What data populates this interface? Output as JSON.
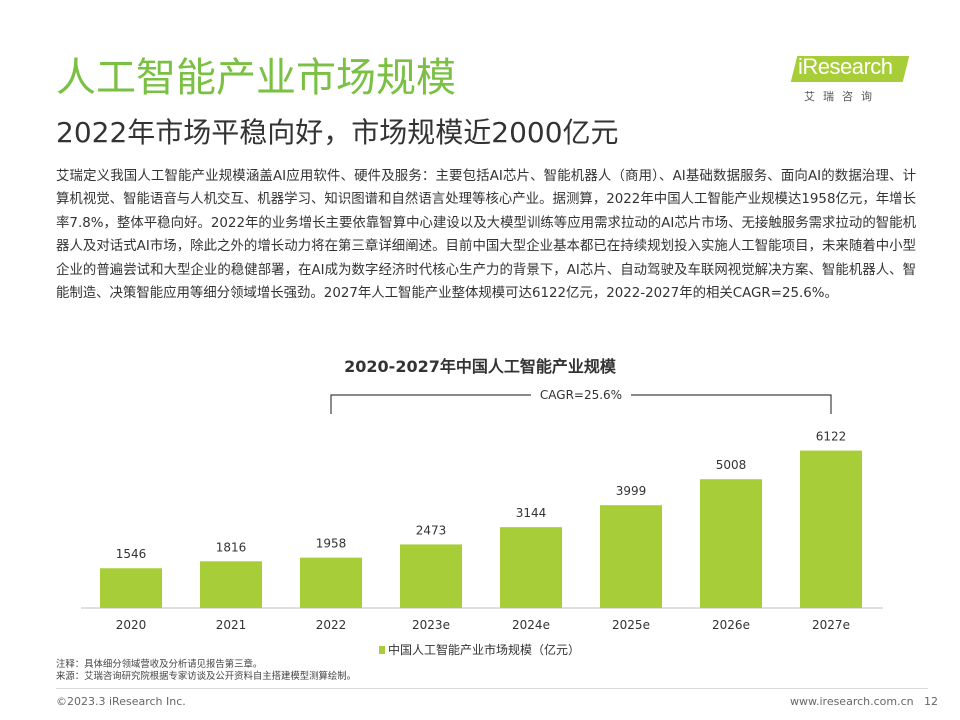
{
  "slide": {
    "title": "人工智能产业市场规模",
    "subtitle": "2022年市场平稳向好，市场规模近2000亿元",
    "paragraph": "艾瑞定义我国人工智能产业规模涵盖AI应用软件、硬件及服务：主要包括AI芯片、智能机器人（商用）、AI基础数据服务、面向AI的数据治理、计算机视觉、智能语音与人机交互、机器学习、知识图谱和自然语言处理等核心产业。据测算，2022年中国人工智能产业规模达1958亿元，年增长率7.8%，整体平稳向好。2022年的业务增长主要依靠智算中心建设以及大模型训练等应用需求拉动的AI芯片市场、无接触服务需求拉动的智能机器人及对话式AI市场，除此之外的增长动力将在第三章详细阐述。目前中国大型企业基本都已在持续规划投入实施人工智能项目，未来随着中小型企业的普遍尝试和大型企业的稳健部署，在AI成为数字经济时代核心生产力的背景下，AI芯片、自动驾驶及车联网视觉解决方案、智能机器人、智能制造、决策智能应用等细分领域增长强劲。2027年人工智能产业整体规模可达6122亿元，2022-2027年的相关CAGR=25.6%。"
  },
  "logo": {
    "text": "iResearch",
    "sub": "艾瑞咨询"
  },
  "chart_data": {
    "type": "bar",
    "title": "2020-2027年中国人工智能产业规模",
    "categories": [
      "2020",
      "2021",
      "2022",
      "2023e",
      "2024e",
      "2025e",
      "2026e",
      "2027e"
    ],
    "series": [
      {
        "name": "中国人工智能产业市场规模（亿元）",
        "values": [
          1546,
          1816,
          1958,
          2473,
          3144,
          3999,
          5008,
          6122
        ]
      }
    ],
    "annotation": "CAGR=25.6%",
    "color": "#A7CE39",
    "ylim": [
      0,
      6300
    ],
    "grid": false,
    "legend": "bottom"
  },
  "notes": {
    "line1": "注释：具体细分领域营收及分析请见报告第三章。",
    "line2": "来源：艾瑞咨询研究院根据专家访谈及公开资料自主搭建模型测算绘制。"
  },
  "footer": {
    "copyright": "©2023.3 iResearch Inc.",
    "website": "www.iresearch.com.cn",
    "page": "12"
  }
}
